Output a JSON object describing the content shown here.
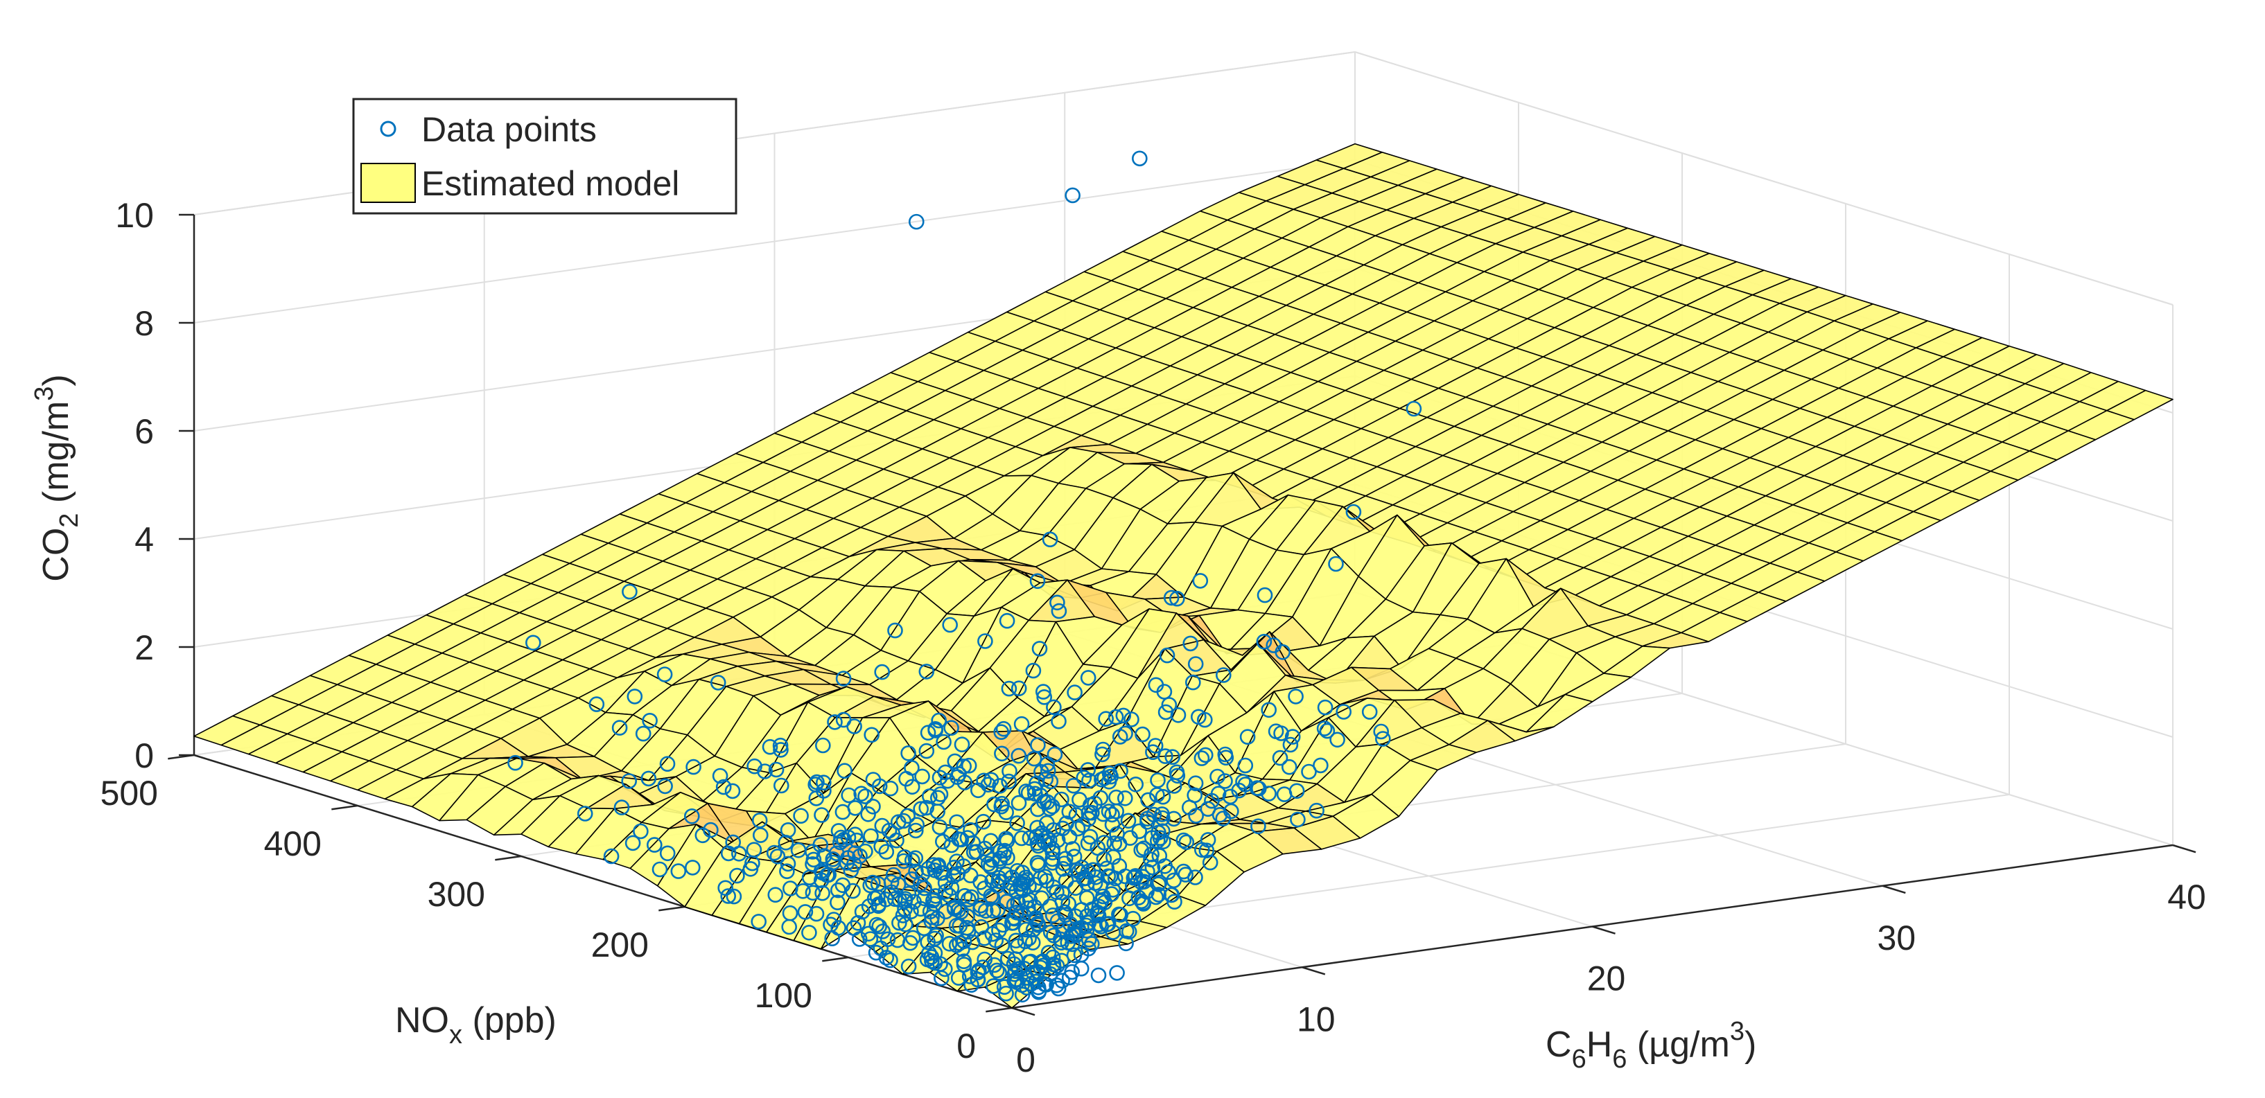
{
  "chart_data": {
    "type": "surface",
    "legend": {
      "placement": "top-left",
      "entries": [
        {
          "label": "Data points",
          "marker": "circle",
          "color": "#0072BD"
        },
        {
          "label": "Estimated model",
          "marker": "patch",
          "color": "#FFFF80"
        }
      ]
    },
    "axes": {
      "x": {
        "base": "C",
        "sub1": "6",
        "mid": "H",
        "sub2": "6",
        "unit": " (µg/m",
        "sup": "3",
        "close": ")",
        "lim": [
          0,
          40
        ],
        "ticks": [
          "0",
          "10",
          "20",
          "30",
          "40"
        ]
      },
      "y": {
        "base": "NO",
        "sub": "x",
        "unit": " (ppb)",
        "lim": [
          0,
          500
        ],
        "ticks": [
          "0",
          "100",
          "200",
          "300",
          "400",
          "500"
        ]
      },
      "z": {
        "base": "CO",
        "sub": "2",
        "unit": " (mg/m",
        "sup": "3",
        "close": ")",
        "lim": [
          0,
          10
        ],
        "ticks": [
          "0",
          "2",
          "4",
          "6",
          "8",
          "10"
        ]
      }
    },
    "grid": true,
    "surface_color": "#FFFF80",
    "edge_color": "#000000",
    "marker_color": "#0072BD",
    "surface_model": "CO2 rises with C6H6 (about 0.2 mg/m3 per µg/m3), nearly flat in NOx, with ridges along the data cloud",
    "scatter_summary": "≈800 observations concentrated at C6H6 0–20 µg/m3, NOx 0–350 ppb, CO2 0–10 mg/m3"
  }
}
